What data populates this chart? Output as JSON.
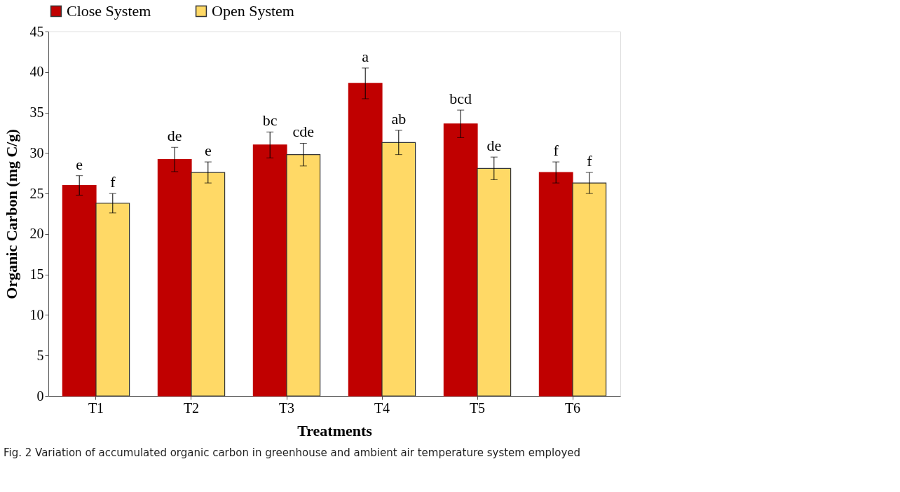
{
  "chart_data": {
    "type": "bar",
    "xlabel": "Treatments",
    "ylabel": "Organic Carbon (mg C/g)",
    "categories": [
      "T1",
      "T2",
      "T3",
      "T4",
      "T5",
      "T6"
    ],
    "series": [
      {
        "name": "Close System",
        "color": "#c00000",
        "values": [
          26.0,
          29.2,
          31.0,
          38.6,
          33.6,
          27.6
        ],
        "errors": [
          1.2,
          1.5,
          1.6,
          1.9,
          1.7,
          1.3
        ],
        "value_labels": [
          "e",
          "de",
          "bc",
          "a",
          "bcd",
          "f"
        ]
      },
      {
        "name": "Open System",
        "color": "#ffd966",
        "values": [
          23.8,
          27.6,
          29.8,
          31.3,
          28.1,
          26.3
        ],
        "errors": [
          1.2,
          1.3,
          1.4,
          1.5,
          1.4,
          1.3
        ],
        "value_labels": [
          "f",
          "e",
          "cde",
          "ab",
          "de",
          "f"
        ]
      }
    ],
    "ylim": [
      0,
      45
    ],
    "yticks": [
      0,
      5,
      10,
      15,
      20,
      25,
      30,
      35,
      40,
      45
    ],
    "grid": false,
    "legend": "top",
    "annotations": [
      "Fig. 2  Variation of accumulated organic carbon in greenhouse and ambient air temperature system employed"
    ]
  }
}
